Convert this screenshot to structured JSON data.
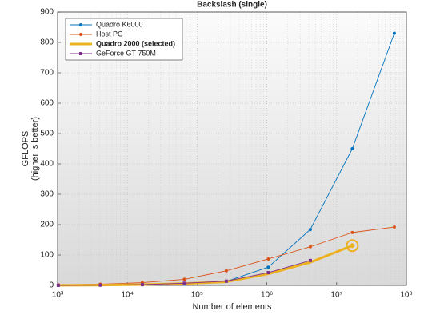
{
  "chart_data": {
    "type": "line",
    "title": "Backslash (single)",
    "x_label": "Number of elements",
    "y_label": [
      "GFLOPS",
      "(higher is better)"
    ],
    "x": [
      1024,
      4096,
      16384,
      65536,
      262144,
      1048576,
      4194304,
      16777216,
      67108864
    ],
    "series": [
      {
        "name": "Quadro K6000",
        "color": "#0072bd",
        "marker": "circle",
        "values": [
          0.3,
          1,
          2,
          4,
          13,
          60,
          184,
          450,
          830
        ]
      },
      {
        "name": "Host PC",
        "color": "#d95319",
        "marker": "circle",
        "values": [
          2,
          4,
          9,
          20,
          48,
          87,
          127,
          174,
          192
        ]
      },
      {
        "name": "Quadro 2000 (selected)",
        "color": "#edb120",
        "marker": "none",
        "selected": true,
        "values": [
          0.2,
          0.8,
          2.5,
          6,
          12,
          38,
          76,
          131,
          null
        ]
      },
      {
        "name": "GeForce GT 750M",
        "color": "#7e2f8e",
        "marker": "square",
        "values": [
          0.2,
          0.8,
          2.5,
          7,
          14,
          42,
          82,
          null,
          null
        ]
      }
    ],
    "xscale": "log",
    "xlim": [
      1000,
      100000000
    ],
    "xticks": [
      {
        "value": 1000,
        "label": "10³"
      },
      {
        "value": 10000,
        "label": "10⁴"
      },
      {
        "value": 100000,
        "label": "10⁵"
      },
      {
        "value": 1000000,
        "label": "10⁶"
      },
      {
        "value": 10000000,
        "label": "10⁷"
      },
      {
        "value": 100000000,
        "label": "10⁸"
      }
    ],
    "ylim": [
      0,
      900
    ],
    "yticks": [
      0,
      100,
      200,
      300,
      400,
      500,
      600,
      700,
      800,
      900
    ],
    "grid": true,
    "minor_grid": true,
    "legend": "upper left"
  }
}
